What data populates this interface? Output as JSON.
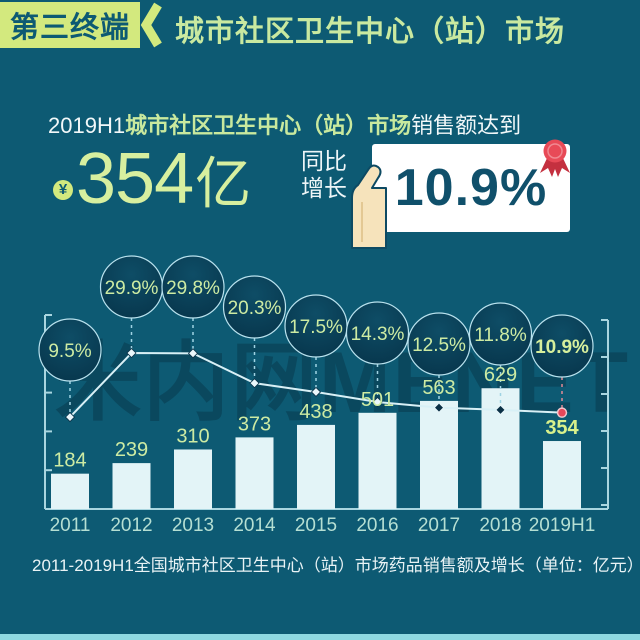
{
  "header": {
    "badge": "第三终端",
    "title": "城市社区卫生中心（站）市场"
  },
  "hero": {
    "subtitle_prefix": "2019H1",
    "subtitle_highlight": "城市社区卫生中心（站）市场",
    "subtitle_suffix": "销售额达到",
    "currency_symbol": "¥",
    "amount": "354",
    "amount_unit": "亿",
    "growth_label_line1": "同比",
    "growth_label_line2": "增长",
    "growth_value": "10.9%"
  },
  "watermark": "米内网MENET",
  "caption": "2011-2019H1全国城市社区卫生中心（站）市场药品销售额及增长（单位：亿元）",
  "chart_data": {
    "type": "bar+line",
    "categories": [
      "2011",
      "2012",
      "2013",
      "2014",
      "2015",
      "2016",
      "2017",
      "2018",
      "2019H1"
    ],
    "bar_values": [
      184,
      239,
      310,
      373,
      438,
      501,
      563,
      629,
      354
    ],
    "line_values_pct": [
      9.5,
      29.9,
      29.8,
      20.3,
      17.5,
      14.3,
      12.5,
      11.8,
      10.9
    ],
    "unit": "亿元",
    "highlight_index": 8,
    "value_labels_shown": true,
    "legend": "none",
    "colors": {
      "background": "#0d5a73",
      "bar": "#e3f4f7",
      "bar_label": "#cdeba3",
      "highlight_label": "#d9f18b",
      "line": "#d8f0f6",
      "bubble_fill": "#07354b",
      "bubble_border": "#b9e2ee",
      "bubble_text": "#cdeba3",
      "axis": "#a9d6e0",
      "year_label": "#b5dfd3",
      "last_point": "#e6475a"
    }
  }
}
